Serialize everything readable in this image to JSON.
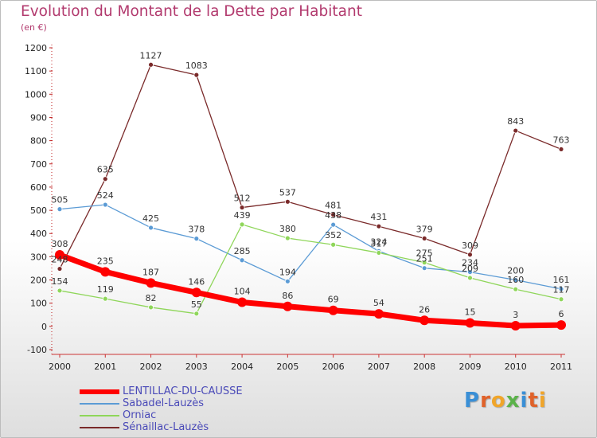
{
  "header": {
    "title": "Evolution du Montant de la Dette par Habitant",
    "unit": "(en €)"
  },
  "logo": {
    "text": "Proxiti",
    "letter_colors": [
      "#3a8fd6",
      "#e0622a",
      "#f0a52a",
      "#5bb24a",
      "#3a8fd6",
      "#e0622a",
      "#f0a52a"
    ]
  },
  "chart_data": {
    "type": "line",
    "title": "Evolution du Montant de la Dette par Habitant",
    "subtitle": "(en €)",
    "xlabel": "",
    "ylabel": "",
    "x": [
      "2000",
      "2001",
      "2002",
      "2003",
      "2004",
      "2005",
      "2006",
      "2007",
      "2008",
      "2009",
      "2010",
      "2011"
    ],
    "ylim": [
      -100,
      1200
    ],
    "yticks": [
      -100,
      0,
      100,
      200,
      300,
      400,
      500,
      600,
      700,
      800,
      900,
      1000,
      1100,
      1200
    ],
    "grid": false,
    "legend_position": "bottom-left",
    "series": [
      {
        "name": "LENTILLAC-DU-CAUSSE",
        "color": "#ff0000",
        "values": [
          308,
          235,
          187,
          146,
          104,
          86,
          69,
          54,
          26,
          15,
          3,
          6
        ]
      },
      {
        "name": "Sabadel-Lauzès",
        "color": "#5b9bd5",
        "values": [
          505,
          524,
          425,
          378,
          285,
          194,
          438,
          324,
          251,
          234,
          200,
          161
        ]
      },
      {
        "name": "Orniac",
        "color": "#8fd65a",
        "values": [
          154,
          119,
          82,
          55,
          439,
          380,
          352,
          317,
          275,
          209,
          160,
          117
        ]
      },
      {
        "name": "Sénaillac-Lauzès",
        "color": "#7a2a2a",
        "values": [
          248,
          635,
          1127,
          1083,
          512,
          537,
          481,
          431,
          379,
          309,
          843,
          763
        ]
      }
    ]
  }
}
